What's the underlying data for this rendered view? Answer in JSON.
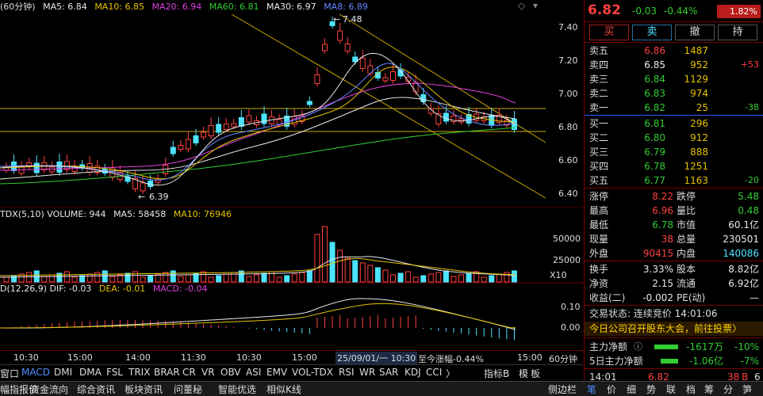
{
  "header": {
    "period_label": "(60分钟)",
    "ma": [
      {
        "label": "MA5: 6.84",
        "color": "#e8e8e8"
      },
      {
        "label": "MA10: 6.85",
        "color": "#e6c200"
      },
      {
        "label": "MA20: 6.94",
        "color": "#e040e0"
      },
      {
        "label": "MA60: 6.81",
        "color": "#33cc33"
      },
      {
        "label": "MA30: 6.97",
        "color": "#e8e8e8"
      },
      {
        "label": "MA8: 6.89",
        "color": "#6688ff"
      }
    ]
  },
  "price_axis": {
    "ticks": [
      "7.40",
      "7.20",
      "7.00",
      "6.80",
      "6.60",
      "6.40"
    ],
    "max_label": "7.48",
    "min_label": "6.39"
  },
  "volume_panel": {
    "legend": [
      {
        "label": "TDX(5,10)  VOLUME: 944",
        "color": "#e8e8e8"
      },
      {
        "label": "MA5: 58458",
        "color": "#e8e8e8"
      },
      {
        "label": "MA10: 76946",
        "color": "#e6c200"
      }
    ],
    "ticks": [
      "50000",
      "25000"
    ],
    "unit": "X10"
  },
  "macd_panel": {
    "legend": [
      {
        "label": "D(12,26,9)  DIF: -0.03",
        "color": "#e8e8e8"
      },
      {
        "label": "DEA: -0.01",
        "color": "#e6c200"
      },
      {
        "label": "MACD: -0.04",
        "color": "#e040e0"
      }
    ],
    "ticks": [
      "0.10",
      "0.00"
    ]
  },
  "time_axis": {
    "labels": [
      "10:30",
      "15:00",
      "14:00",
      "11:30",
      "10:30",
      "15:00",
      "15:00"
    ],
    "cursor": "25/09/01/一 10:30",
    "cursor_info": "至今涨幅-0.44%",
    "period": "60分钟"
  },
  "toolbar": {
    "items": [
      "窗口",
      "MACD",
      "DMI",
      "DMA",
      "FSL",
      "TRIX",
      "BRAR",
      "CR",
      "VR",
      "OBV",
      "ASI",
      "EMV",
      "VOL-TDX",
      "RSI",
      "WR",
      "SAR",
      "KDJ",
      "CCI",
      "〉"
    ],
    "right": [
      "指标B",
      "模",
      "板"
    ]
  },
  "quote": {
    "price": "6.82",
    "change": "-0.03",
    "pct": "-0.44%",
    "badge": "1.82%"
  },
  "trade_buttons": [
    "买",
    "卖",
    "撤",
    "持"
  ],
  "asks": [
    {
      "label": "卖五",
      "price": "6.86",
      "vol": "1487",
      "delta": ""
    },
    {
      "label": "卖四",
      "price": "6.85",
      "vol": "952",
      "delta": "+53"
    },
    {
      "label": "卖三",
      "price": "6.84",
      "vol": "1129",
      "delta": ""
    },
    {
      "label": "卖二",
      "price": "6.83",
      "vol": "974",
      "delta": ""
    },
    {
      "label": "卖一",
      "price": "6.82",
      "vol": "25",
      "delta": "-38"
    }
  ],
  "bids": [
    {
      "label": "买一",
      "price": "6.81",
      "vol": "296",
      "delta": ""
    },
    {
      "label": "买二",
      "price": "6.80",
      "vol": "912",
      "delta": ""
    },
    {
      "label": "买三",
      "price": "6.79",
      "vol": "888",
      "delta": ""
    },
    {
      "label": "买四",
      "price": "6.78",
      "vol": "1251",
      "delta": ""
    },
    {
      "label": "买五",
      "price": "6.77",
      "vol": "1163",
      "delta": "-20"
    }
  ],
  "stats": [
    {
      "k1": "涨停",
      "v1": "8.22",
      "c1": "red",
      "k2": "跌停",
      "v2": "5.48",
      "c2": "grn"
    },
    {
      "k1": "最高",
      "v1": "6.96",
      "c1": "red",
      "k2": "量比",
      "v2": "0.48",
      "c2": "grn"
    },
    {
      "k1": "最低",
      "v1": "6.78",
      "c1": "grn",
      "k2": "市值",
      "v2": "60.1亿",
      "c2": "wht"
    },
    {
      "k1": "现量",
      "v1": "38",
      "c1": "red",
      "k2": "总量",
      "v2": "230501",
      "c2": "wht"
    },
    {
      "k1": "外盘",
      "v1": "90415",
      "c1": "red",
      "k2": "内盘",
      "v2": "140086",
      "c2": "cyan"
    }
  ],
  "stats2": [
    {
      "k1": "换手",
      "v1": "3.33%",
      "c1": "wht",
      "k2": "股本",
      "v2": "8.82亿",
      "c2": "wht"
    },
    {
      "k1": "净资",
      "v1": "2.15",
      "c1": "wht",
      "k2": "流通",
      "v2": "6.92亿",
      "c2": "wht"
    },
    {
      "k1": "收益(二)",
      "v1": "-0.002",
      "c1": "wht",
      "k2": "PE(动)",
      "v2": "—",
      "c2": "wht"
    }
  ],
  "trade_status": "交易状态: 连续竞价 14:01:06",
  "notice": "今日公司召开股东大会，前往投票〉",
  "fund_flow": [
    {
      "label": "主力净额",
      "value": "-1617万",
      "pct": "-10%"
    },
    {
      "label": "5日主力净额",
      "value": "-1.06亿",
      "pct": "-7%"
    }
  ],
  "last_tick": {
    "time": "14:01",
    "price": "6.82",
    "vol": "38",
    "dir": "B",
    "count": "6"
  },
  "bottom_bar": {
    "left": [
      "幅指报价",
      "资金流向",
      "综合资讯",
      "板块资讯",
      "问董秘",
      "智能优选",
      "相似K线"
    ],
    "side": "侧边栏",
    "tabs": [
      "笔",
      "价",
      "细",
      "势",
      "联",
      "档",
      "筹",
      "分",
      "笋",
      "筹"
    ]
  }
}
